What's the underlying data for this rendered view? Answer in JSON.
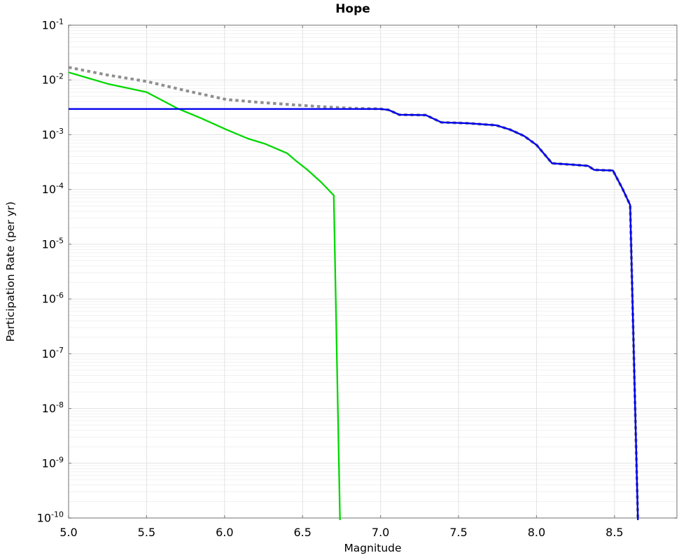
{
  "chart_data": {
    "type": "line",
    "title": "Hope",
    "xlabel": "Magnitude",
    "ylabel": "Participation Rate (per yr)",
    "xlim": [
      5.0,
      8.9
    ],
    "y_scale": "log",
    "y_top_exponent": -1,
    "y_bottom_exponent": -10,
    "grid": true,
    "legend_position": "none",
    "xticks": [
      {
        "v": 5.0,
        "label": "5.0"
      },
      {
        "v": 5.5,
        "label": "5.5"
      },
      {
        "v": 6.0,
        "label": "6.0"
      },
      {
        "v": 6.5,
        "label": "6.5"
      },
      {
        "v": 7.0,
        "label": "7.0"
      },
      {
        "v": 7.5,
        "label": "7.5"
      },
      {
        "v": 8.0,
        "label": "8.0"
      },
      {
        "v": 8.5,
        "label": "8.5"
      }
    ],
    "ytick_exponents": [
      -1,
      -2,
      -3,
      -4,
      -5,
      -6,
      -7,
      -8,
      -9,
      -10
    ],
    "ytick_base": "10",
    "colors": {
      "grid_minor": "#f1f1f1",
      "grid_major": "#e3e3e3",
      "border": "#a0a0a0",
      "tick": "#888888",
      "text": "#000000",
      "background": "#ffffff"
    },
    "series": [
      {
        "name": "gray-dotted-line",
        "style": "dotted",
        "color": "#8f8f8f",
        "width": 4,
        "dash": "4.5 4.5",
        "points": [
          [
            5.0,
            0.017
          ],
          [
            5.25,
            0.0123
          ],
          [
            5.5,
            0.0094
          ],
          [
            5.75,
            0.0064
          ],
          [
            6.01,
            0.0044
          ],
          [
            6.22,
            0.0039
          ],
          [
            6.42,
            0.00355
          ],
          [
            6.62,
            0.00325
          ],
          [
            6.81,
            0.00305
          ],
          [
            7.0,
            0.00297
          ],
          [
            7.05,
            0.00285
          ],
          [
            7.12,
            0.00232
          ],
          [
            7.29,
            0.00228
          ],
          [
            7.39,
            0.00168
          ],
          [
            7.56,
            0.00162
          ],
          [
            7.74,
            0.00149
          ],
          [
            7.83,
            0.00124
          ],
          [
            7.92,
            0.00095
          ],
          [
            8.0,
            0.00065
          ],
          [
            8.1,
            0.0003
          ],
          [
            8.22,
            0.000285
          ],
          [
            8.33,
            0.00027
          ],
          [
            8.37,
            0.000228
          ],
          [
            8.49,
            0.000222
          ],
          [
            8.55,
            0.000105
          ],
          [
            8.6,
            5.2e-05
          ],
          [
            8.65,
            1e-10
          ]
        ]
      },
      {
        "name": "green-solid-line",
        "style": "solid",
        "color": "#00d800",
        "width": 2.3,
        "dash": null,
        "points": [
          [
            5.0,
            0.0138
          ],
          [
            5.25,
            0.0085
          ],
          [
            5.5,
            0.006
          ],
          [
            5.7,
            0.003
          ],
          [
            5.85,
            0.002
          ],
          [
            6.01,
            0.00125
          ],
          [
            6.15,
            0.00085
          ],
          [
            6.26,
            0.00068
          ],
          [
            6.4,
            0.00046
          ],
          [
            6.46,
            0.00033
          ],
          [
            6.53,
            0.00023
          ],
          [
            6.62,
            0.000135
          ],
          [
            6.7,
            7.8e-05
          ],
          [
            6.74,
            1e-10
          ]
        ]
      },
      {
        "name": "blue-solid-line",
        "style": "solid",
        "color": "#0000ee",
        "width": 2.4,
        "dash": null,
        "points": [
          [
            5.0,
            0.00295
          ],
          [
            7.0,
            0.00295
          ],
          [
            7.05,
            0.00285
          ],
          [
            7.12,
            0.00232
          ],
          [
            7.29,
            0.00228
          ],
          [
            7.39,
            0.00168
          ],
          [
            7.56,
            0.00162
          ],
          [
            7.74,
            0.00149
          ],
          [
            7.83,
            0.00124
          ],
          [
            7.92,
            0.00095
          ],
          [
            8.0,
            0.00065
          ],
          [
            8.1,
            0.0003
          ],
          [
            8.22,
            0.000285
          ],
          [
            8.33,
            0.00027
          ],
          [
            8.37,
            0.000228
          ],
          [
            8.49,
            0.000222
          ],
          [
            8.55,
            0.000105
          ],
          [
            8.6,
            5.2e-05
          ],
          [
            8.65,
            1e-10
          ]
        ]
      }
    ]
  }
}
